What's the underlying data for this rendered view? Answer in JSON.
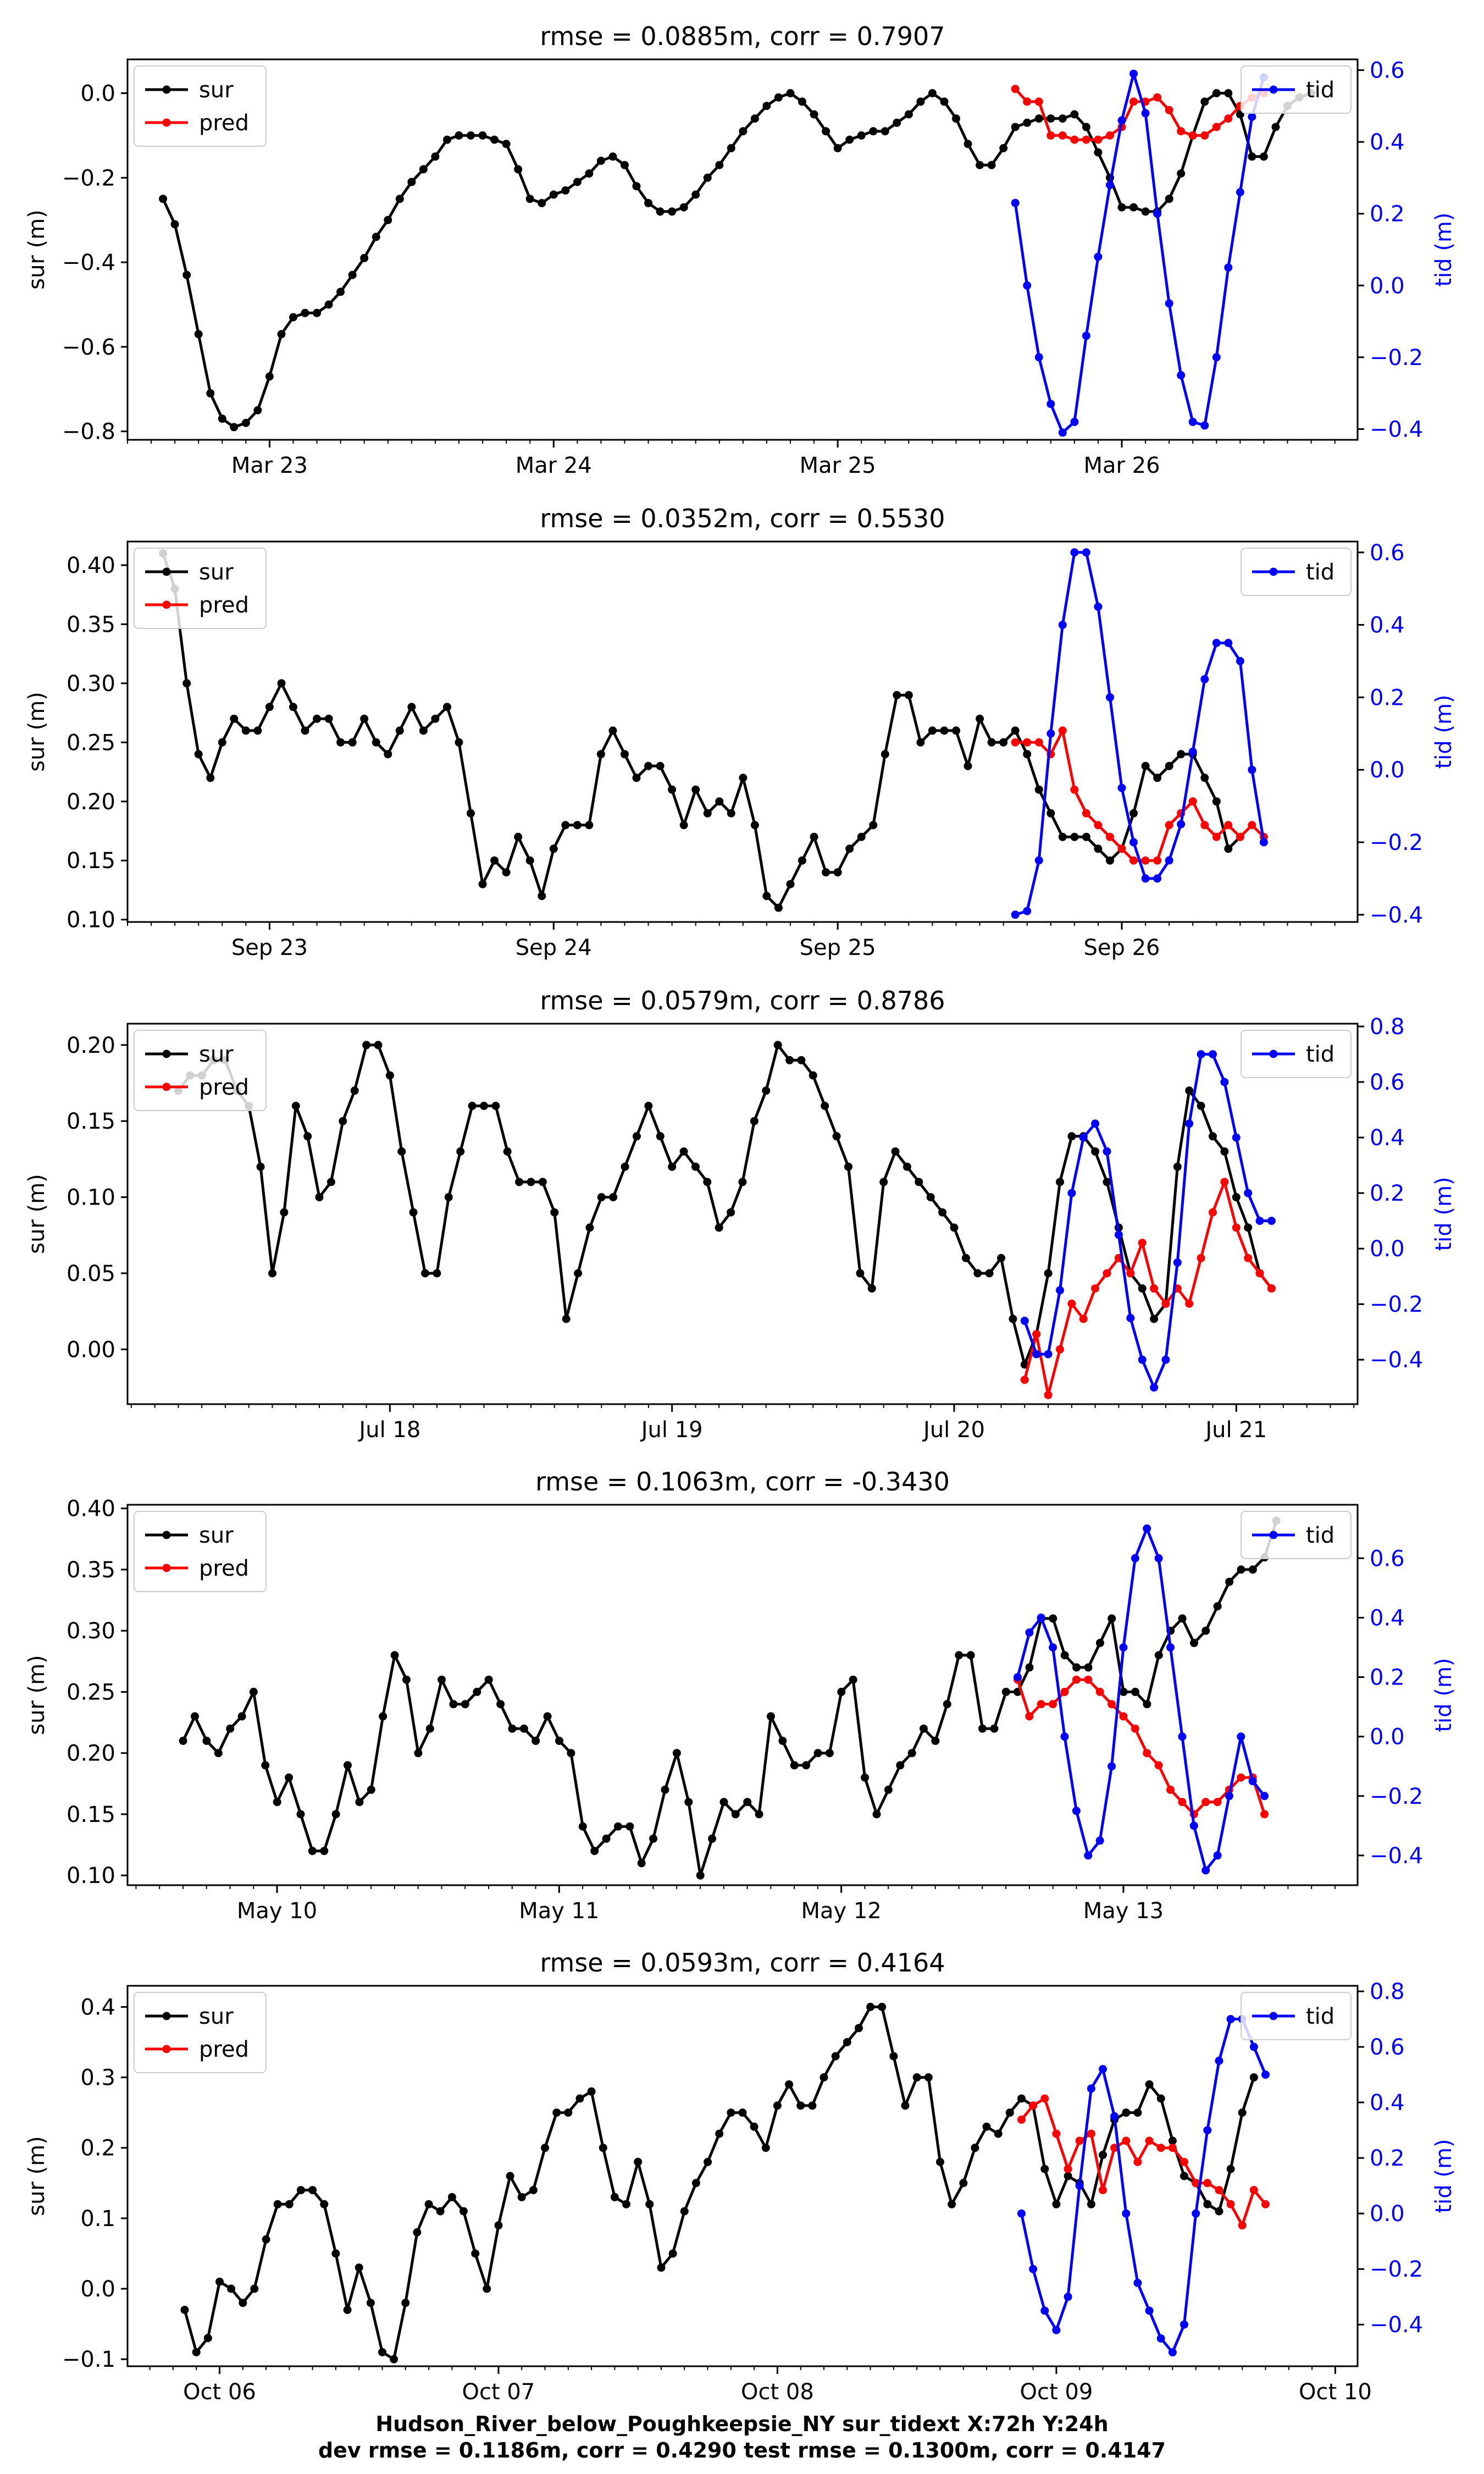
{
  "figure": {
    "footer_line1": "Hudson_River_below_Poughkeepsie_NY   sur_tidext   X:72h   Y:24h",
    "footer_line2": "dev rmse = 0.1186m, corr = 0.4290   test rmse = 0.1300m, corr = 0.4147"
  },
  "colors": {
    "sur": "#000000",
    "pred": "#ff0000",
    "tid": "#0000ff"
  },
  "chart_data": [
    {
      "type": "line",
      "title": "rmse = 0.0885m, corr = 0.7907",
      "ylabel": "sur (m)",
      "ylabel_right": "tid (m)",
      "xlim": [
        -0.5,
        3.83
      ],
      "ylim": [
        -0.82,
        0.08
      ],
      "ylim_right": [
        -0.43,
        0.63
      ],
      "yticks": [
        -0.8,
        -0.6,
        -0.4,
        -0.2,
        0.0
      ],
      "ytick_labels": [
        "−0.8",
        "−0.6",
        "−0.4",
        "−0.2",
        "0.0"
      ],
      "yticks_right": [
        -0.4,
        -0.2,
        0.0,
        0.2,
        0.4,
        0.6
      ],
      "ytick_labels_right": [
        "−0.4",
        "−0.2",
        "0.0",
        "0.2",
        "0.4",
        "0.6"
      ],
      "xticks": [
        0,
        1,
        2,
        3
      ],
      "xtick_labels": [
        "Mar 23",
        "Mar 24",
        "Mar 25",
        "Mar 26"
      ],
      "legend_left": [
        "sur",
        "pred"
      ],
      "legend_right": [
        "tid"
      ],
      "sur_start": -0.375,
      "sur": [
        -0.25,
        -0.31,
        -0.43,
        -0.57,
        -0.71,
        -0.77,
        -0.79,
        -0.78,
        -0.75,
        -0.67,
        -0.57,
        -0.53,
        -0.52,
        -0.52,
        -0.5,
        -0.47,
        -0.43,
        -0.39,
        -0.34,
        -0.3,
        -0.25,
        -0.21,
        -0.18,
        -0.15,
        -0.11,
        -0.1,
        -0.1,
        -0.1,
        -0.11,
        -0.12,
        -0.18,
        -0.25,
        -0.26,
        -0.24,
        -0.23,
        -0.21,
        -0.19,
        -0.16,
        -0.15,
        -0.17,
        -0.22,
        -0.26,
        -0.28,
        -0.28,
        -0.27,
        -0.24,
        -0.2,
        -0.17,
        -0.13,
        -0.09,
        -0.06,
        -0.03,
        -0.01,
        0.0,
        -0.02,
        -0.05,
        -0.09,
        -0.13,
        -0.11,
        -0.1,
        -0.09,
        -0.09,
        -0.07,
        -0.05,
        -0.02,
        0.0,
        -0.02,
        -0.06,
        -0.12,
        -0.17,
        -0.17,
        -0.13,
        -0.08,
        -0.07,
        -0.06,
        -0.06,
        -0.06,
        -0.05,
        -0.08,
        -0.14,
        -0.2,
        -0.27,
        -0.27,
        -0.28,
        -0.28,
        -0.25,
        -0.19,
        -0.1,
        -0.02,
        0.0,
        0.0,
        -0.05,
        -0.15,
        -0.15,
        -0.08,
        -0.03,
        -0.01,
        0.0
      ],
      "pred_start": 2.625,
      "pred": [
        0.01,
        -0.02,
        -0.02,
        -0.1,
        -0.1,
        -0.11,
        -0.11,
        -0.11,
        -0.1,
        -0.08,
        -0.02,
        -0.02,
        -0.01,
        -0.04,
        -0.09,
        -0.1,
        -0.1,
        -0.08,
        -0.06,
        -0.03,
        -0.01,
        0.0
      ],
      "tid_start": 2.625,
      "tid": [
        0.23,
        0.0,
        -0.2,
        -0.33,
        -0.41,
        -0.38,
        -0.14,
        0.08,
        0.28,
        0.46,
        0.59,
        0.48,
        0.2,
        -0.05,
        -0.25,
        -0.38,
        -0.39,
        -0.2,
        0.05,
        0.26,
        0.47,
        0.58
      ],
      "dt": 0.0416667
    },
    {
      "type": "line",
      "title": "rmse = 0.0352m, corr = 0.5530",
      "ylabel": "sur (m)",
      "ylabel_right": "tid (m)",
      "xlim": [
        -0.5,
        3.83
      ],
      "ylim": [
        0.098,
        0.42
      ],
      "ylim_right": [
        -0.42,
        0.63
      ],
      "yticks": [
        0.1,
        0.15,
        0.2,
        0.25,
        0.3,
        0.35,
        0.4
      ],
      "ytick_labels": [
        "0.10",
        "0.15",
        "0.20",
        "0.25",
        "0.30",
        "0.35",
        "0.40"
      ],
      "yticks_right": [
        -0.4,
        -0.2,
        0.0,
        0.2,
        0.4,
        0.6
      ],
      "ytick_labels_right": [
        "−0.4",
        "−0.2",
        "0.0",
        "0.2",
        "0.4",
        "0.6"
      ],
      "xticks": [
        0,
        1,
        2,
        3
      ],
      "xtick_labels": [
        "Sep 23",
        "Sep 24",
        "Sep 25",
        "Sep 26"
      ],
      "legend_left": [
        "sur",
        "pred"
      ],
      "legend_right": [
        "tid"
      ],
      "sur_start": -0.375,
      "sur": [
        0.41,
        0.38,
        0.3,
        0.24,
        0.22,
        0.25,
        0.27,
        0.26,
        0.26,
        0.28,
        0.3,
        0.28,
        0.26,
        0.27,
        0.27,
        0.25,
        0.25,
        0.27,
        0.25,
        0.24,
        0.26,
        0.28,
        0.26,
        0.27,
        0.28,
        0.25,
        0.19,
        0.13,
        0.15,
        0.14,
        0.17,
        0.15,
        0.12,
        0.16,
        0.18,
        0.18,
        0.18,
        0.24,
        0.26,
        0.24,
        0.22,
        0.23,
        0.23,
        0.21,
        0.18,
        0.21,
        0.19,
        0.2,
        0.19,
        0.22,
        0.18,
        0.12,
        0.11,
        0.13,
        0.15,
        0.17,
        0.14,
        0.14,
        0.16,
        0.17,
        0.18,
        0.24,
        0.29,
        0.29,
        0.25,
        0.26,
        0.26,
        0.26,
        0.23,
        0.27,
        0.25,
        0.25,
        0.26,
        0.24,
        0.21,
        0.19,
        0.17,
        0.17,
        0.17,
        0.16,
        0.15,
        0.16,
        0.19,
        0.23,
        0.22,
        0.23,
        0.24,
        0.24,
        0.22,
        0.2,
        0.16,
        0.17
      ],
      "pred_start": 2.625,
      "pred": [
        0.25,
        0.25,
        0.25,
        0.24,
        0.26,
        0.21,
        0.19,
        0.18,
        0.17,
        0.16,
        0.15,
        0.15,
        0.15,
        0.18,
        0.19,
        0.2,
        0.18,
        0.17,
        0.18,
        0.17,
        0.18,
        0.17
      ],
      "tid_start": 2.625,
      "tid": [
        -0.4,
        -0.39,
        -0.25,
        0.1,
        0.4,
        0.6,
        0.6,
        0.45,
        0.2,
        -0.05,
        -0.2,
        -0.3,
        -0.3,
        -0.25,
        -0.15,
        0.05,
        0.25,
        0.35,
        0.35,
        0.3,
        0.0,
        -0.2
      ],
      "dt": 0.0416667
    },
    {
      "type": "line",
      "title": "rmse = 0.0579m, corr = 0.8786",
      "ylabel": "sur (m)",
      "ylabel_right": "tid (m)",
      "xlim": [
        -0.93,
        3.43
      ],
      "ylim": [
        -0.036,
        0.214
      ],
      "ylim_right": [
        -0.56,
        0.81
      ],
      "yticks": [
        0.0,
        0.05,
        0.1,
        0.15,
        0.2
      ],
      "ytick_labels": [
        "0.00",
        "0.05",
        "0.10",
        "0.15",
        "0.20"
      ],
      "yticks_right": [
        -0.4,
        -0.2,
        0.0,
        0.2,
        0.4,
        0.6,
        0.8
      ],
      "ytick_labels_right": [
        "−0.4",
        "−0.2",
        "0.0",
        "0.2",
        "0.4",
        "0.6",
        "0.8"
      ],
      "xticks": [
        0,
        1,
        2,
        3
      ],
      "xtick_labels": [
        "Jul 18",
        "Jul 19",
        "Jul 20",
        "Jul 21"
      ],
      "legend_left": [
        "sur",
        "pred"
      ],
      "legend_right": [
        "tid"
      ],
      "sur_start": -0.75,
      "sur": [
        0.17,
        0.18,
        0.18,
        0.19,
        0.19,
        0.17,
        0.16,
        0.12,
        0.05,
        0.09,
        0.16,
        0.14,
        0.1,
        0.11,
        0.15,
        0.17,
        0.2,
        0.2,
        0.18,
        0.13,
        0.09,
        0.05,
        0.05,
        0.1,
        0.13,
        0.16,
        0.16,
        0.16,
        0.13,
        0.11,
        0.11,
        0.11,
        0.09,
        0.02,
        0.05,
        0.08,
        0.1,
        0.1,
        0.12,
        0.14,
        0.16,
        0.14,
        0.12,
        0.13,
        0.12,
        0.11,
        0.08,
        0.09,
        0.11,
        0.15,
        0.17,
        0.2,
        0.19,
        0.19,
        0.18,
        0.16,
        0.14,
        0.12,
        0.05,
        0.04,
        0.11,
        0.13,
        0.12,
        0.11,
        0.1,
        0.09,
        0.08,
        0.06,
        0.05,
        0.05,
        0.06,
        0.02,
        -0.01,
        0.01,
        0.05,
        0.11,
        0.14,
        0.14,
        0.13,
        0.11,
        0.08,
        0.05,
        0.04,
        0.02,
        0.03,
        0.12,
        0.17,
        0.16,
        0.14,
        0.13,
        0.1,
        0.08,
        0.05,
        0.04
      ],
      "pred_start": 2.25,
      "pred": [
        -0.02,
        0.01,
        -0.03,
        0.0,
        0.03,
        0.02,
        0.04,
        0.05,
        0.06,
        0.05,
        0.07,
        0.04,
        0.03,
        0.04,
        0.03,
        0.06,
        0.09,
        0.11,
        0.08,
        0.06,
        0.05,
        0.04
      ],
      "tid_start": 2.25,
      "tid": [
        -0.26,
        -0.38,
        -0.38,
        -0.15,
        0.2,
        0.4,
        0.45,
        0.35,
        0.05,
        -0.25,
        -0.4,
        -0.5,
        -0.4,
        -0.05,
        0.45,
        0.7,
        0.7,
        0.6,
        0.4,
        0.2,
        0.1,
        0.1
      ],
      "dt": 0.0416667
    },
    {
      "type": "line",
      "title": "rmse = 0.1063m, corr = -0.3430",
      "ylabel": "sur (m)",
      "ylabel_right": "tid (m)",
      "xlim": [
        -0.53,
        3.83
      ],
      "ylim": [
        0.092,
        0.403
      ],
      "ylim_right": [
        -0.5,
        0.78
      ],
      "yticks": [
        0.1,
        0.15,
        0.2,
        0.25,
        0.3,
        0.35,
        0.4
      ],
      "ytick_labels": [
        "0.10",
        "0.15",
        "0.20",
        "0.25",
        "0.30",
        "0.35",
        "0.40"
      ],
      "yticks_right": [
        -0.4,
        -0.2,
        0.0,
        0.2,
        0.4,
        0.6
      ],
      "ytick_labels_right": [
        "−0.4",
        "−0.2",
        "0.0",
        "0.2",
        "0.4",
        "0.6"
      ],
      "xticks": [
        0,
        1,
        2,
        3
      ],
      "xtick_labels": [
        "May 10",
        "May 11",
        "May 12",
        "May 13"
      ],
      "legend_left": [
        "sur",
        "pred"
      ],
      "legend_right": [
        "tid"
      ],
      "sur_start": -0.333,
      "sur": [
        0.21,
        0.23,
        0.21,
        0.2,
        0.22,
        0.23,
        0.25,
        0.19,
        0.16,
        0.18,
        0.15,
        0.12,
        0.12,
        0.15,
        0.19,
        0.16,
        0.17,
        0.23,
        0.28,
        0.26,
        0.2,
        0.22,
        0.26,
        0.24,
        0.24,
        0.25,
        0.26,
        0.24,
        0.22,
        0.22,
        0.21,
        0.23,
        0.21,
        0.2,
        0.14,
        0.12,
        0.13,
        0.14,
        0.14,
        0.11,
        0.13,
        0.17,
        0.2,
        0.16,
        0.1,
        0.13,
        0.16,
        0.15,
        0.16,
        0.15,
        0.23,
        0.21,
        0.19,
        0.19,
        0.2,
        0.2,
        0.25,
        0.26,
        0.18,
        0.15,
        0.17,
        0.19,
        0.2,
        0.22,
        0.21,
        0.24,
        0.28,
        0.28,
        0.22,
        0.22,
        0.25,
        0.25,
        0.27,
        0.31,
        0.31,
        0.28,
        0.27,
        0.27,
        0.29,
        0.31,
        0.25,
        0.25,
        0.24,
        0.28,
        0.3,
        0.31,
        0.29,
        0.3,
        0.32,
        0.34,
        0.35,
        0.35,
        0.36,
        0.39
      ],
      "pred_start": 2.625,
      "pred": [
        0.26,
        0.23,
        0.24,
        0.24,
        0.25,
        0.26,
        0.26,
        0.25,
        0.24,
        0.23,
        0.22,
        0.2,
        0.19,
        0.17,
        0.16,
        0.15,
        0.16,
        0.16,
        0.17,
        0.18,
        0.18,
        0.15
      ],
      "tid_start": 2.625,
      "tid": [
        0.2,
        0.35,
        0.4,
        0.3,
        0.0,
        -0.25,
        -0.4,
        -0.35,
        -0.1,
        0.3,
        0.6,
        0.7,
        0.6,
        0.3,
        0.0,
        -0.3,
        -0.45,
        -0.4,
        -0.2,
        0.0,
        -0.15,
        -0.2
      ],
      "dt": 0.0416667
    },
    {
      "type": "line",
      "title": "rmse = 0.0593m, corr = 0.4164",
      "ylabel": "sur (m)",
      "ylabel_right": "tid (m)",
      "xlim": [
        -0.58,
        3.83
      ],
      "ylim": [
        -0.11,
        0.43
      ],
      "ylim_right": [
        -0.55,
        0.82
      ],
      "yticks": [
        -0.1,
        0.0,
        0.1,
        0.2,
        0.3,
        0.4
      ],
      "ytick_labels": [
        "−0.1",
        "0.0",
        "0.1",
        "0.2",
        "0.3",
        "0.4"
      ],
      "yticks_right": [
        -0.4,
        -0.2,
        0.0,
        0.2,
        0.4,
        0.6,
        0.8
      ],
      "ytick_labels_right": [
        "−0.4",
        "−0.2",
        "0.0",
        "0.2",
        "0.4",
        "0.6",
        "0.8"
      ],
      "xticks": [
        -0.25,
        0.75,
        1.75,
        2.75,
        3.75
      ],
      "xtick_labels": [
        "Oct 06",
        "Oct 07",
        "Oct 08",
        "Oct 09",
        "Oct 10"
      ],
      "legend_left": [
        "sur",
        "pred"
      ],
      "legend_right": [
        "tid"
      ],
      "sur_start": -0.375,
      "sur": [
        -0.03,
        -0.09,
        -0.07,
        0.01,
        0.0,
        -0.02,
        0.0,
        0.07,
        0.12,
        0.12,
        0.14,
        0.14,
        0.12,
        0.05,
        -0.03,
        0.03,
        -0.02,
        -0.09,
        -0.1,
        -0.02,
        0.08,
        0.12,
        0.11,
        0.13,
        0.11,
        0.05,
        0.0,
        0.09,
        0.16,
        0.13,
        0.14,
        0.2,
        0.25,
        0.25,
        0.27,
        0.28,
        0.2,
        0.13,
        0.12,
        0.18,
        0.12,
        0.03,
        0.05,
        0.11,
        0.15,
        0.18,
        0.22,
        0.25,
        0.25,
        0.23,
        0.2,
        0.26,
        0.29,
        0.26,
        0.26,
        0.3,
        0.33,
        0.35,
        0.37,
        0.4,
        0.4,
        0.33,
        0.26,
        0.3,
        0.3,
        0.18,
        0.12,
        0.15,
        0.2,
        0.23,
        0.22,
        0.25,
        0.27,
        0.26,
        0.17,
        0.12,
        0.16,
        0.15,
        0.12,
        0.19,
        0.24,
        0.25,
        0.25,
        0.29,
        0.27,
        0.21,
        0.16,
        0.15,
        0.12,
        0.11,
        0.17,
        0.25,
        0.3
      ],
      "pred_start": 2.625,
      "pred": [
        0.24,
        0.26,
        0.27,
        0.22,
        0.17,
        0.21,
        0.22,
        0.14,
        0.2,
        0.21,
        0.18,
        0.21,
        0.2,
        0.2,
        0.18,
        0.15,
        0.15,
        0.14,
        0.12,
        0.09,
        0.14,
        0.12
      ],
      "tid_start": 2.625,
      "tid": [
        0.0,
        -0.2,
        -0.35,
        -0.42,
        -0.3,
        0.1,
        0.45,
        0.52,
        0.35,
        0.0,
        -0.25,
        -0.35,
        -0.45,
        -0.5,
        -0.4,
        0.0,
        0.3,
        0.55,
        0.7,
        0.7,
        0.6,
        0.5
      ],
      "dt": 0.0416667
    }
  ]
}
